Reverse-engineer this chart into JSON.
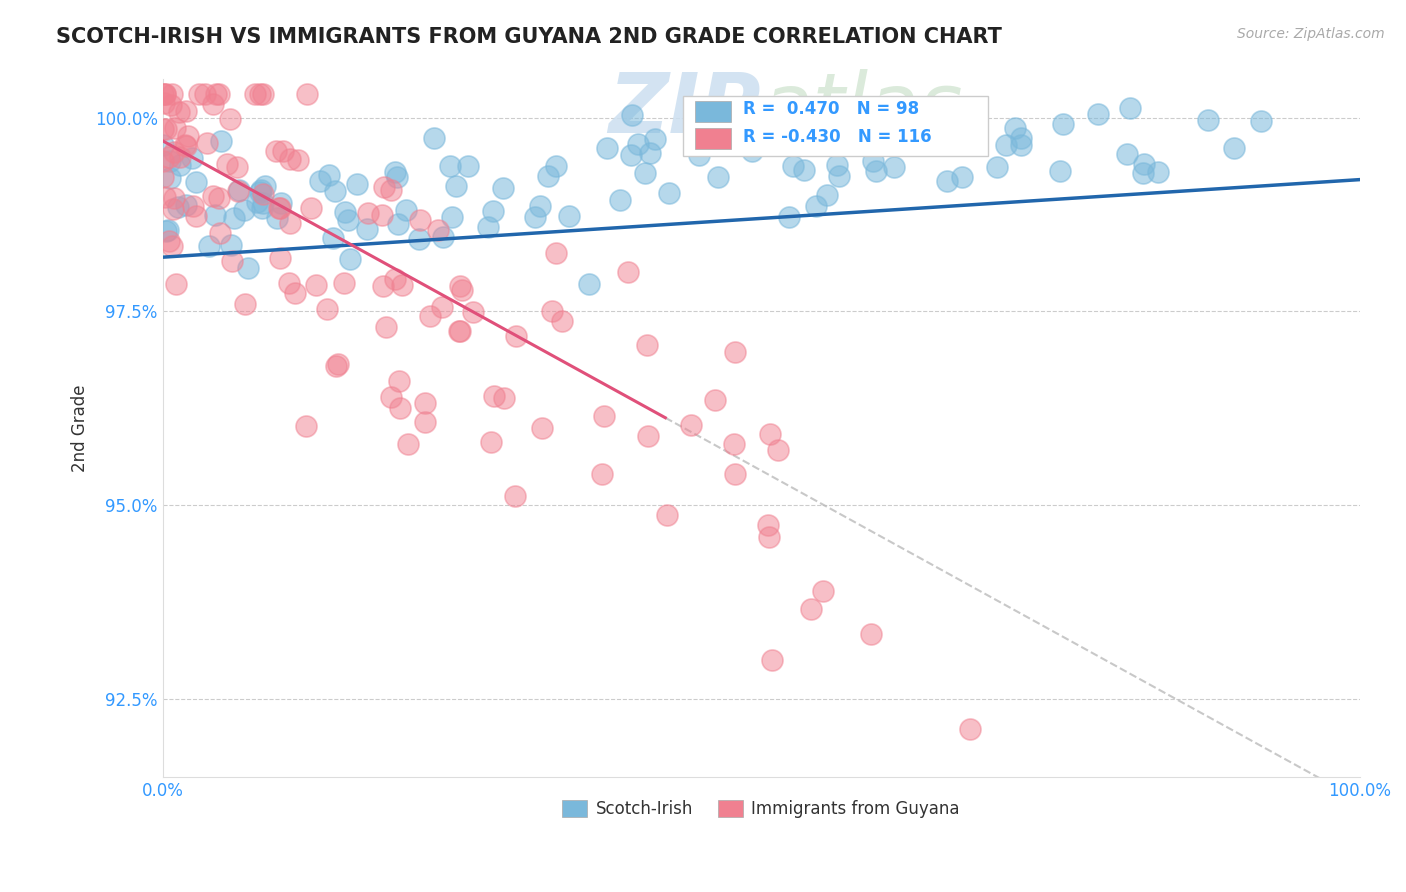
{
  "title": "SCOTCH-IRISH VS IMMIGRANTS FROM GUYANA 2ND GRADE CORRELATION CHART",
  "source": "Source: ZipAtlas.com",
  "ylabel": "2nd Grade",
  "xlim": [
    0.0,
    1.0
  ],
  "ylim": [
    0.915,
    1.005
  ],
  "yticks": [
    0.925,
    0.95,
    0.975,
    1.0
  ],
  "ytick_labels": [
    "92.5%",
    "95.0%",
    "97.5%",
    "100.0%"
  ],
  "blue_R": 0.47,
  "blue_N": 98,
  "pink_R": -0.43,
  "pink_N": 116,
  "blue_color": "#7ab8db",
  "pink_color": "#f08090",
  "blue_line_color": "#2166ac",
  "pink_line_color": "#e0507a",
  "legend_label_blue": "Scotch-Irish",
  "legend_label_pink": "Immigrants from Guyana"
}
